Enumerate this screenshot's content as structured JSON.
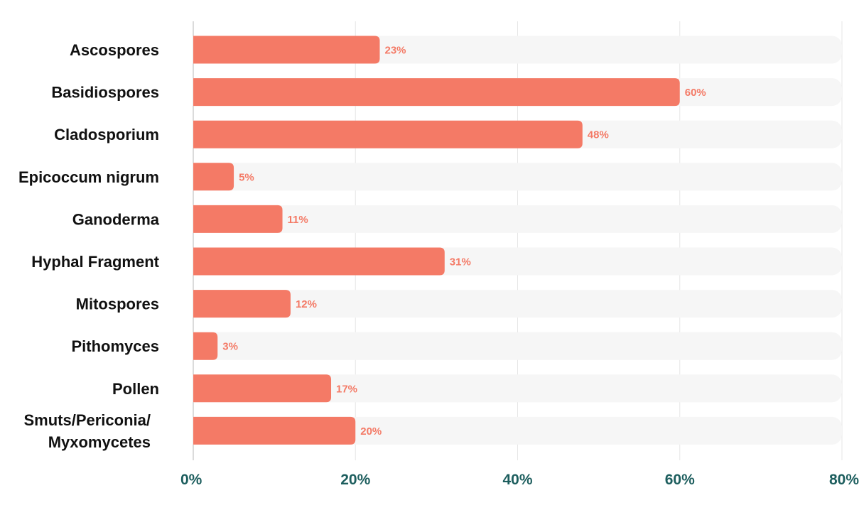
{
  "chart_data": {
    "type": "bar",
    "orientation": "horizontal",
    "categories": [
      [
        "Ascospores"
      ],
      [
        "Basidiospores"
      ],
      [
        "Cladosporium"
      ],
      [
        "Epicoccum nigrum"
      ],
      [
        "Ganoderma"
      ],
      [
        "Hyphal Fragment"
      ],
      [
        "Mitospores"
      ],
      [
        "Pithomyces"
      ],
      [
        "Pollen"
      ],
      [
        "Smuts/Periconia/",
        "Myxomycetes"
      ]
    ],
    "values": [
      23,
      60,
      48,
      5,
      11,
      31,
      12,
      3,
      17,
      20
    ],
    "value_labels": [
      "23%",
      "60%",
      "48%",
      "5%",
      "11%",
      "31%",
      "12%",
      "3%",
      "17%",
      "20%"
    ],
    "xlim": [
      0,
      80
    ],
    "xticks": [
      0,
      20,
      40,
      60,
      80
    ],
    "xtick_labels": [
      "0%",
      "20%",
      "40%",
      "60%",
      "80%"
    ],
    "grid": true,
    "bar_color": "#f47a66",
    "track_color": "#f6f6f6",
    "grid_color": "#e6e6e6",
    "tick_color": "#1d5e5e",
    "label_color": "#111111"
  }
}
